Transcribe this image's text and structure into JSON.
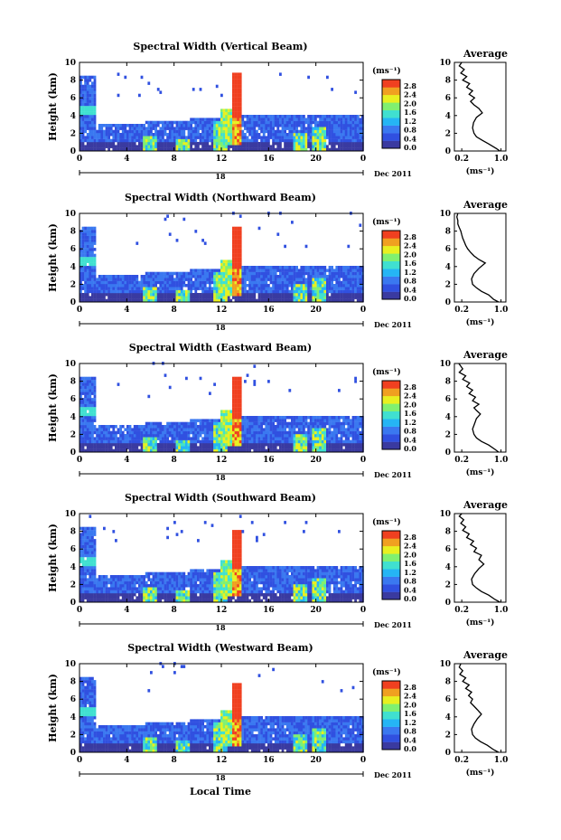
{
  "figure": {
    "xlabel": "Local Time",
    "date_label": "Dec 2011",
    "day_label": "18",
    "colorbar_unit": "(ms⁻¹)",
    "colorbar_ticks": [
      "0.0",
      "0.4",
      "0.8",
      "1.2",
      "1.6",
      "2.0",
      "2.4",
      "2.8"
    ],
    "avg_title": "Average",
    "avg_xlabel": "(ms⁻¹)"
  },
  "colors": {
    "scale": [
      "#3a3aa0",
      "#3050e0",
      "#3a78f0",
      "#25b5f5",
      "#40e0d0",
      "#80f070",
      "#e8f020",
      "#f0a020",
      "#f04020"
    ],
    "line": "#000000"
  },
  "chart_data": [
    {
      "type": "heatmap",
      "title": "Spectral Width (Vertical Beam)",
      "x_ticks": [
        "0",
        "4",
        "8",
        "12",
        "16",
        "20",
        "0"
      ],
      "y_ticks": [
        "0",
        "2",
        "4",
        "6",
        "8",
        "10"
      ],
      "xlim": [
        0,
        24
      ],
      "ylim": [
        0,
        10
      ],
      "ylabel": "Height (km)",
      "avg": {
        "x_ticks": [
          "0.2",
          "1.0"
        ],
        "y_ticks": [
          "0",
          "2",
          "4",
          "6",
          "8",
          "10"
        ],
        "profile": [
          [
            0.98,
            0
          ],
          [
            0.9,
            0.3
          ],
          [
            0.75,
            0.8
          ],
          [
            0.62,
            1.2
          ],
          [
            0.5,
            1.6
          ],
          [
            0.45,
            2.0
          ],
          [
            0.42,
            2.6
          ],
          [
            0.44,
            3.2
          ],
          [
            0.5,
            3.8
          ],
          [
            0.62,
            4.3
          ],
          [
            0.55,
            4.8
          ],
          [
            0.45,
            5.2
          ],
          [
            0.38,
            5.6
          ],
          [
            0.46,
            6.0
          ],
          [
            0.35,
            6.4
          ],
          [
            0.42,
            6.8
          ],
          [
            0.3,
            7.2
          ],
          [
            0.36,
            7.6
          ],
          [
            0.22,
            8.0
          ],
          [
            0.3,
            8.4
          ],
          [
            0.18,
            8.8
          ],
          [
            0.25,
            9.2
          ],
          [
            0.15,
            9.6
          ],
          [
            0.2,
            10
          ]
        ]
      }
    },
    {
      "type": "heatmap",
      "title": "Spectral Width (Northward Beam)",
      "x_ticks": [
        "0",
        "4",
        "8",
        "12",
        "16",
        "20",
        "0"
      ],
      "y_ticks": [
        "0",
        "2",
        "4",
        "6",
        "8",
        "10"
      ],
      "xlim": [
        0,
        24
      ],
      "ylim": [
        0,
        10
      ],
      "ylabel": "Height (km)",
      "avg": {
        "x_ticks": [
          "0.2",
          "1.0"
        ],
        "y_ticks": [
          "0",
          "2",
          "4",
          "6",
          "8",
          "10"
        ],
        "profile": [
          [
            0.95,
            0
          ],
          [
            0.85,
            0.3
          ],
          [
            0.75,
            0.8
          ],
          [
            0.6,
            1.2
          ],
          [
            0.5,
            1.6
          ],
          [
            0.42,
            2.0
          ],
          [
            0.4,
            2.6
          ],
          [
            0.45,
            3.2
          ],
          [
            0.55,
            3.8
          ],
          [
            0.68,
            4.4
          ],
          [
            0.55,
            4.8
          ],
          [
            0.45,
            5.2
          ],
          [
            0.38,
            5.6
          ],
          [
            0.32,
            6.0
          ],
          [
            0.28,
            6.4
          ],
          [
            0.25,
            6.8
          ],
          [
            0.22,
            7.2
          ],
          [
            0.2,
            7.6
          ],
          [
            0.18,
            8.0
          ],
          [
            0.15,
            8.4
          ],
          [
            0.12,
            8.8
          ],
          [
            0.12,
            9.2
          ],
          [
            0.1,
            9.6
          ],
          [
            0.12,
            10
          ]
        ]
      }
    },
    {
      "type": "heatmap",
      "title": "Spectral Width (Eastward Beam)",
      "x_ticks": [
        "0",
        "4",
        "8",
        "12",
        "16",
        "20",
        "0"
      ],
      "y_ticks": [
        "0",
        "2",
        "4",
        "6",
        "8",
        "10"
      ],
      "xlim": [
        0,
        24
      ],
      "ylim": [
        0,
        10
      ],
      "ylabel": "Height (km)",
      "avg": {
        "x_ticks": [
          "0.2",
          "1.0"
        ],
        "y_ticks": [
          "0",
          "2",
          "4",
          "6",
          "8",
          "10"
        ],
        "profile": [
          [
            0.95,
            0
          ],
          [
            0.88,
            0.3
          ],
          [
            0.75,
            0.8
          ],
          [
            0.6,
            1.2
          ],
          [
            0.5,
            1.6
          ],
          [
            0.45,
            2.0
          ],
          [
            0.42,
            2.6
          ],
          [
            0.46,
            3.2
          ],
          [
            0.5,
            3.8
          ],
          [
            0.58,
            4.3
          ],
          [
            0.5,
            4.7
          ],
          [
            0.45,
            5.0
          ],
          [
            0.55,
            5.4
          ],
          [
            0.42,
            5.8
          ],
          [
            0.48,
            6.2
          ],
          [
            0.35,
            6.6
          ],
          [
            0.42,
            7.0
          ],
          [
            0.3,
            7.4
          ],
          [
            0.36,
            7.8
          ],
          [
            0.22,
            8.2
          ],
          [
            0.28,
            8.6
          ],
          [
            0.15,
            9.0
          ],
          [
            0.22,
            9.4
          ],
          [
            0.14,
            10
          ]
        ]
      }
    },
    {
      "type": "heatmap",
      "title": "Spectral Width (Southward Beam)",
      "x_ticks": [
        "0",
        "4",
        "8",
        "12",
        "16",
        "20",
        "0"
      ],
      "y_ticks": [
        "0",
        "2",
        "4",
        "6",
        "8",
        "10"
      ],
      "xlim": [
        0,
        24
      ],
      "ylim": [
        0,
        10
      ],
      "ylabel": "Height (km)",
      "avg": {
        "x_ticks": [
          "0.2",
          "1.0"
        ],
        "y_ticks": [
          "0",
          "2",
          "4",
          "6",
          "8",
          "10"
        ],
        "profile": [
          [
            0.98,
            0
          ],
          [
            0.88,
            0.3
          ],
          [
            0.75,
            0.8
          ],
          [
            0.6,
            1.2
          ],
          [
            0.5,
            1.6
          ],
          [
            0.42,
            2.0
          ],
          [
            0.4,
            2.6
          ],
          [
            0.46,
            3.2
          ],
          [
            0.55,
            3.8
          ],
          [
            0.65,
            4.3
          ],
          [
            0.55,
            4.8
          ],
          [
            0.6,
            5.3
          ],
          [
            0.45,
            5.7
          ],
          [
            0.5,
            6.1
          ],
          [
            0.38,
            6.5
          ],
          [
            0.44,
            6.9
          ],
          [
            0.3,
            7.3
          ],
          [
            0.35,
            7.7
          ],
          [
            0.22,
            8.1
          ],
          [
            0.28,
            8.5
          ],
          [
            0.18,
            8.9
          ],
          [
            0.24,
            9.3
          ],
          [
            0.15,
            9.7
          ],
          [
            0.2,
            10
          ]
        ]
      }
    },
    {
      "type": "heatmap",
      "title": "Spectral Width (Westward Beam)",
      "x_ticks": [
        "0",
        "4",
        "8",
        "12",
        "16",
        "20",
        "0"
      ],
      "y_ticks": [
        "0",
        "2",
        "4",
        "6",
        "8",
        "10"
      ],
      "xlim": [
        0,
        24
      ],
      "ylim": [
        0,
        10
      ],
      "ylabel": "Height (km)",
      "avg": {
        "x_ticks": [
          "0.2",
          "1.0"
        ],
        "y_ticks": [
          "0",
          "2",
          "4",
          "6",
          "8",
          "10"
        ],
        "profile": [
          [
            0.95,
            0
          ],
          [
            0.85,
            0.3
          ],
          [
            0.72,
            0.8
          ],
          [
            0.58,
            1.2
          ],
          [
            0.48,
            1.6
          ],
          [
            0.42,
            2.0
          ],
          [
            0.4,
            2.6
          ],
          [
            0.45,
            3.2
          ],
          [
            0.52,
            3.8
          ],
          [
            0.6,
            4.3
          ],
          [
            0.52,
            4.8
          ],
          [
            0.45,
            5.2
          ],
          [
            0.38,
            5.6
          ],
          [
            0.42,
            6.0
          ],
          [
            0.34,
            6.4
          ],
          [
            0.4,
            6.8
          ],
          [
            0.28,
            7.2
          ],
          [
            0.35,
            7.6
          ],
          [
            0.22,
            8.0
          ],
          [
            0.28,
            8.4
          ],
          [
            0.16,
            8.8
          ],
          [
            0.22,
            9.2
          ],
          [
            0.15,
            9.6
          ],
          [
            0.18,
            10
          ]
        ]
      }
    }
  ]
}
